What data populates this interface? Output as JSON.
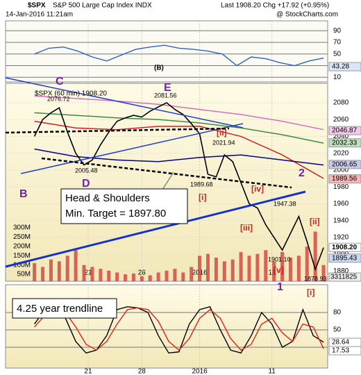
{
  "header": {
    "symbol": "$SPX",
    "name": "S&P 500 Large Cap Index INDX",
    "date": "14-Jan-2016 11:21am",
    "last": "Last 1908.20 Chg +17.92 (+0.95%)",
    "source": "@ StockCharts.com",
    "legend": "$SPX (60 min) 1908.20"
  },
  "annotations": {
    "wave_b_big": "(B)",
    "c": "C",
    "d": "D",
    "e": "E",
    "b": "B",
    "ii_a": "[ii]",
    "i_a": "[i]",
    "iv": "[iv]",
    "iii": "[iii]",
    "v": "[v]",
    "two": "2",
    "ii_b": "[ii]",
    "one": "1",
    "i_b": "[i]",
    "p_c": "2076.72",
    "p_e": "2081.56",
    "p_d": "2005.48",
    "p_ii": "2021.94",
    "p_i": "1989.68",
    "p_2": "1947.38",
    "p_1": "1901.10",
    "p_ib": "1878.93",
    "hs_title": "Head & Shoulders",
    "hs_target": "Min. Target = 1897.80",
    "trendline": "4.25 year trendline"
  },
  "chart_data": [
    {
      "type": "line",
      "name": "RSI",
      "xlim": [
        -14,
        142
      ],
      "ylim": [
        2,
        107
      ],
      "yticks": [
        90,
        70,
        50,
        30,
        10
      ],
      "x": [
        0,
        7,
        14,
        21,
        28,
        35,
        42,
        49,
        56,
        63,
        70,
        77,
        84,
        91,
        98,
        105,
        112,
        119,
        126,
        133,
        140
      ],
      "series": [
        {
          "color": "#3060c0",
          "values": [
            50,
            60,
            62,
            55,
            45,
            38,
            48,
            58,
            62,
            65,
            60,
            58,
            55,
            50,
            30,
            45,
            42,
            35,
            30,
            38,
            43
          ]
        }
      ],
      "tags": [
        {
          "label": "43.28",
          "color": "#dce6f5"
        }
      ]
    },
    {
      "type": "line",
      "name": "price",
      "xlim": [
        -14,
        142
      ],
      "ylim": [
        1868,
        2103
      ],
      "yticks": [
        2080,
        2060,
        2040,
        2020,
        2000,
        1980,
        1960,
        1940,
        1920,
        1900,
        1880
      ],
      "xticks": [
        {
          "value": 26,
          "label": "21"
        },
        {
          "value": 52,
          "label": "28"
        },
        {
          "value": 80,
          "label": "2016"
        },
        {
          "value": 115,
          "label": "11"
        }
      ],
      "x": [
        0,
        4,
        8,
        12,
        16,
        20,
        24,
        28,
        32,
        36,
        40,
        44,
        48,
        52,
        56,
        60,
        64,
        68,
        72,
        76,
        80,
        84,
        88,
        92,
        96,
        100,
        104,
        108,
        112,
        116,
        120,
        124,
        128,
        132,
        136,
        140
      ],
      "series": [
        {
          "color": "#000000",
          "values": [
            2040,
            2060,
            2068,
            2074,
            2045,
            2020,
            2006,
            2012,
            2030,
            2045,
            2058,
            2062,
            2065,
            2063,
            2070,
            2075,
            2080,
            2072,
            2066,
            2055,
            2043,
            1995,
            1992,
            2018,
            2010,
            1985,
            1960,
            1955,
            1935,
            1920,
            1905,
            1925,
            1945,
            1915,
            1882,
            1908
          ]
        }
      ],
      "overlays": {
        "x": [
          0,
          20,
          40,
          60,
          80,
          100,
          120,
          140
        ],
        "lines": [
          {
            "color": "#d070c0",
            "values": [
              2088,
              2085,
              2082,
              2078,
              2072,
              2066,
              2058,
              2048
            ]
          },
          {
            "color": "#3c8c3c",
            "values": [
              2068,
              2065,
              2062,
              2060,
              2056,
              2050,
              2042,
              2032
            ]
          },
          {
            "color": "#d02020",
            "values": [
              2058,
              2050,
              2048,
              2052,
              2052,
              2040,
              2018,
              1990
            ]
          },
          {
            "color": "#000080",
            "values": [
              2025,
              2016,
              2012,
              2010,
              2015,
              2018,
              2012,
              2006
            ]
          }
        ]
      },
      "tags": [
        {
          "label": "2046.87",
          "color": "#f3c9ea"
        },
        {
          "label": "2032.33",
          "color": "#bfe0bf"
        },
        {
          "label": "2006.65",
          "color": "#c8c8e8"
        },
        {
          "label": "1989.56",
          "color": "#f5b8b8"
        },
        {
          "label": "1908.20",
          "color": "#ffffff"
        },
        {
          "label": "1895.43",
          "color": "#c8d8f0"
        }
      ],
      "volume": {
        "color": "#d04040",
        "ylim": [
          13,
          1076
        ],
        "yticks": [
          {
            "value": 300,
            "label": "300M"
          },
          {
            "value": 250,
            "label": "250M"
          },
          {
            "value": 200,
            "label": "200M"
          },
          {
            "value": 150,
            "label": "150M"
          },
          {
            "value": 100,
            "label": "100M"
          },
          {
            "value": 50,
            "label": "50M"
          }
        ],
        "values": [
          110,
          90,
          130,
          120,
          150,
          180,
          100,
          90,
          80,
          70,
          60,
          50,
          55,
          40,
          45,
          60,
          70,
          80,
          60,
          90,
          150,
          160,
          140,
          120,
          130,
          170,
          150,
          160,
          180,
          120,
          170,
          140,
          150,
          200,
          280,
          100
        ],
        "tag": "3311825"
      }
    },
    {
      "type": "line",
      "name": "stochastic",
      "xlim": [
        -14,
        142
      ],
      "ylim": [
        -16,
        128
      ],
      "yticks": [
        80,
        50,
        20
      ],
      "x": [
        0,
        5,
        10,
        15,
        20,
        25,
        30,
        35,
        40,
        45,
        50,
        55,
        60,
        65,
        70,
        75,
        80,
        85,
        90,
        95,
        100,
        105,
        110,
        115,
        120,
        125,
        130,
        135,
        140
      ],
      "series": [
        {
          "color": "#000000",
          "values": [
            60,
            85,
            90,
            70,
            30,
            10,
            15,
            40,
            85,
            90,
            88,
            80,
            40,
            10,
            12,
            60,
            85,
            90,
            50,
            15,
            10,
            40,
            80,
            60,
            20,
            30,
            85,
            40,
            28.6
          ]
        },
        {
          "color": "#e02020",
          "values": [
            55,
            75,
            85,
            80,
            55,
            25,
            15,
            30,
            60,
            85,
            88,
            85,
            65,
            30,
            15,
            35,
            70,
            85,
            70,
            35,
            15,
            25,
            60,
            70,
            45,
            30,
            60,
            55,
            17.5
          ]
        }
      ],
      "tags": [
        {
          "label": "28.64",
          "color": "#ffffff"
        },
        {
          "label": "17.53",
          "color": "#ffffff"
        }
      ]
    }
  ]
}
